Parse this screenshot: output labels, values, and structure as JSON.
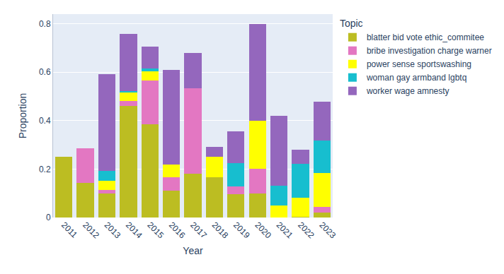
{
  "chart_data": {
    "type": "bar",
    "stacked": true,
    "x_label": "Year",
    "y_label": "Proportion",
    "legend_title": "Topic",
    "legend": "right",
    "grid": true,
    "categories": [
      "2011",
      "2012",
      "2013",
      "2014",
      "2015",
      "2016",
      "2017",
      "2018",
      "2019",
      "2020",
      "2021",
      "2022",
      "2023"
    ],
    "series": [
      {
        "name": "blatter bid vote ethic_commitee",
        "color": "#bcbd22",
        "values": [
          0.25,
          0.143,
          0.1,
          0.46,
          0.385,
          0.11,
          0.18,
          0.167,
          0.097,
          0.1,
          0,
          0.003,
          0.02
        ]
      },
      {
        "name": "bribe investigation charge warner",
        "color": "#e377c2",
        "values": [
          0,
          0.143,
          0.013,
          0.02,
          0.18,
          0.055,
          0.355,
          0,
          0.032,
          0.1,
          0,
          0,
          0.024
        ]
      },
      {
        "name": "power sense sportswashing",
        "color": "#ffff00",
        "values": [
          0,
          0,
          0.04,
          0.035,
          0.04,
          0.055,
          0,
          0.083,
          0,
          0.2,
          0.05,
          0.08,
          0.14
        ]
      },
      {
        "name": "woman gay armband lgbtq",
        "color": "#17becf",
        "values": [
          0,
          0,
          0.04,
          0.007,
          0.01,
          0,
          0,
          0,
          0.097,
          0,
          0.08,
          0.14,
          0.135
        ]
      },
      {
        "name": "worker wage amnesty",
        "color": "#9467bd",
        "values": [
          0,
          0,
          0.4,
          0.235,
          0.09,
          0.39,
          0.145,
          0.042,
          0.129,
          0.4,
          0.29,
          0.056,
          0.16
        ]
      }
    ],
    "ylim": [
      0,
      0.84
    ],
    "yticks": [
      0,
      0.2,
      0.4,
      0.6,
      0.8
    ]
  }
}
